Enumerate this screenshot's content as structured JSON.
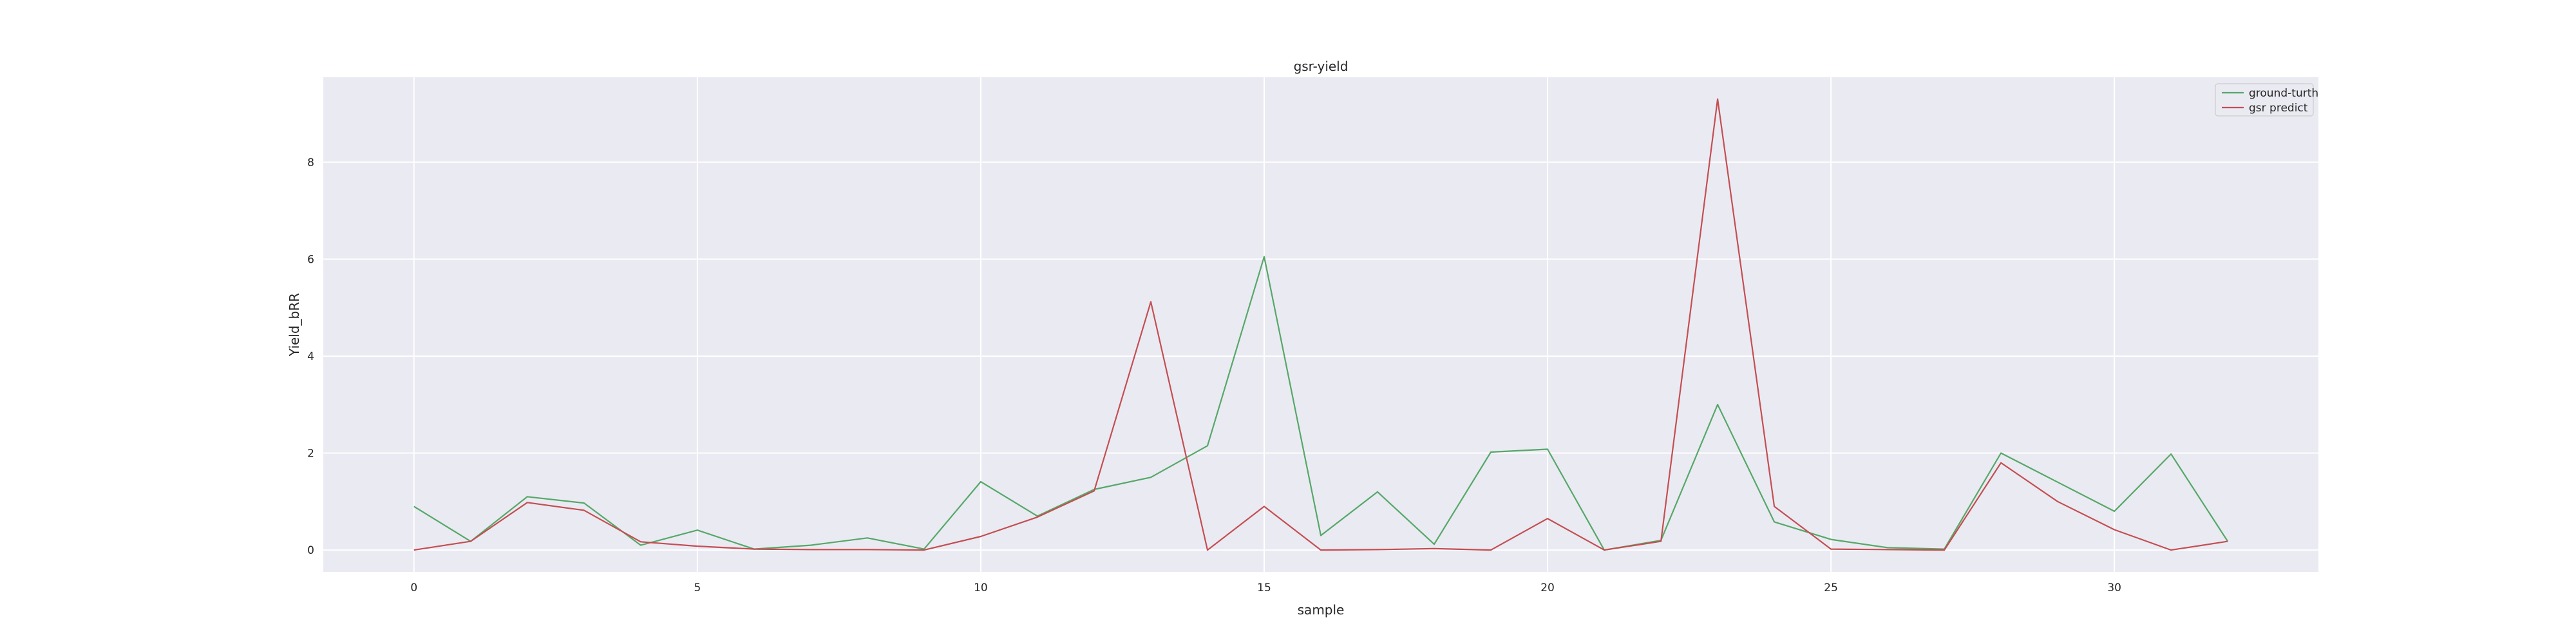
{
  "chart_data": {
    "type": "line",
    "title": "gsr-yield",
    "xlabel": "sample",
    "ylabel": "Yield_bRR",
    "x": [
      0,
      1,
      2,
      3,
      4,
      5,
      6,
      7,
      8,
      9,
      10,
      11,
      12,
      13,
      14,
      15,
      16,
      17,
      18,
      19,
      20,
      21,
      22,
      23,
      24,
      25,
      26,
      27,
      28,
      29,
      30,
      31,
      32
    ],
    "xlim": [
      -1.6,
      33.6
    ],
    "ylim": [
      -0.45,
      9.75
    ],
    "xticks": [
      0,
      5,
      10,
      15,
      20,
      25,
      30
    ],
    "yticks": [
      0,
      2,
      4,
      6,
      8
    ],
    "grid": true,
    "legend_position": "top-right",
    "background_color": "#eaeaf2",
    "series": [
      {
        "name": "ground-turth",
        "color": "#55a868",
        "values": [
          0.9,
          0.18,
          1.1,
          0.97,
          0.1,
          0.41,
          0.02,
          0.1,
          0.25,
          0.02,
          1.41,
          0.7,
          1.25,
          1.5,
          2.15,
          6.05,
          0.3,
          1.2,
          0.12,
          2.02,
          2.08,
          0.0,
          0.2,
          3.0,
          0.58,
          0.22,
          0.05,
          0.02,
          2.0,
          1.4,
          0.8,
          1.98,
          0.18
        ]
      },
      {
        "name": "gsr predict",
        "color": "#c44e52",
        "values": [
          0.0,
          0.18,
          0.98,
          0.82,
          0.17,
          0.08,
          0.02,
          0.01,
          0.01,
          0.0,
          0.28,
          0.68,
          1.22,
          5.12,
          0.0,
          0.9,
          0.0,
          0.01,
          0.03,
          0.0,
          0.65,
          0.0,
          0.18,
          9.3,
          0.9,
          0.02,
          0.01,
          0.0,
          1.8,
          1.0,
          0.42,
          0.0,
          0.18
        ]
      }
    ]
  }
}
